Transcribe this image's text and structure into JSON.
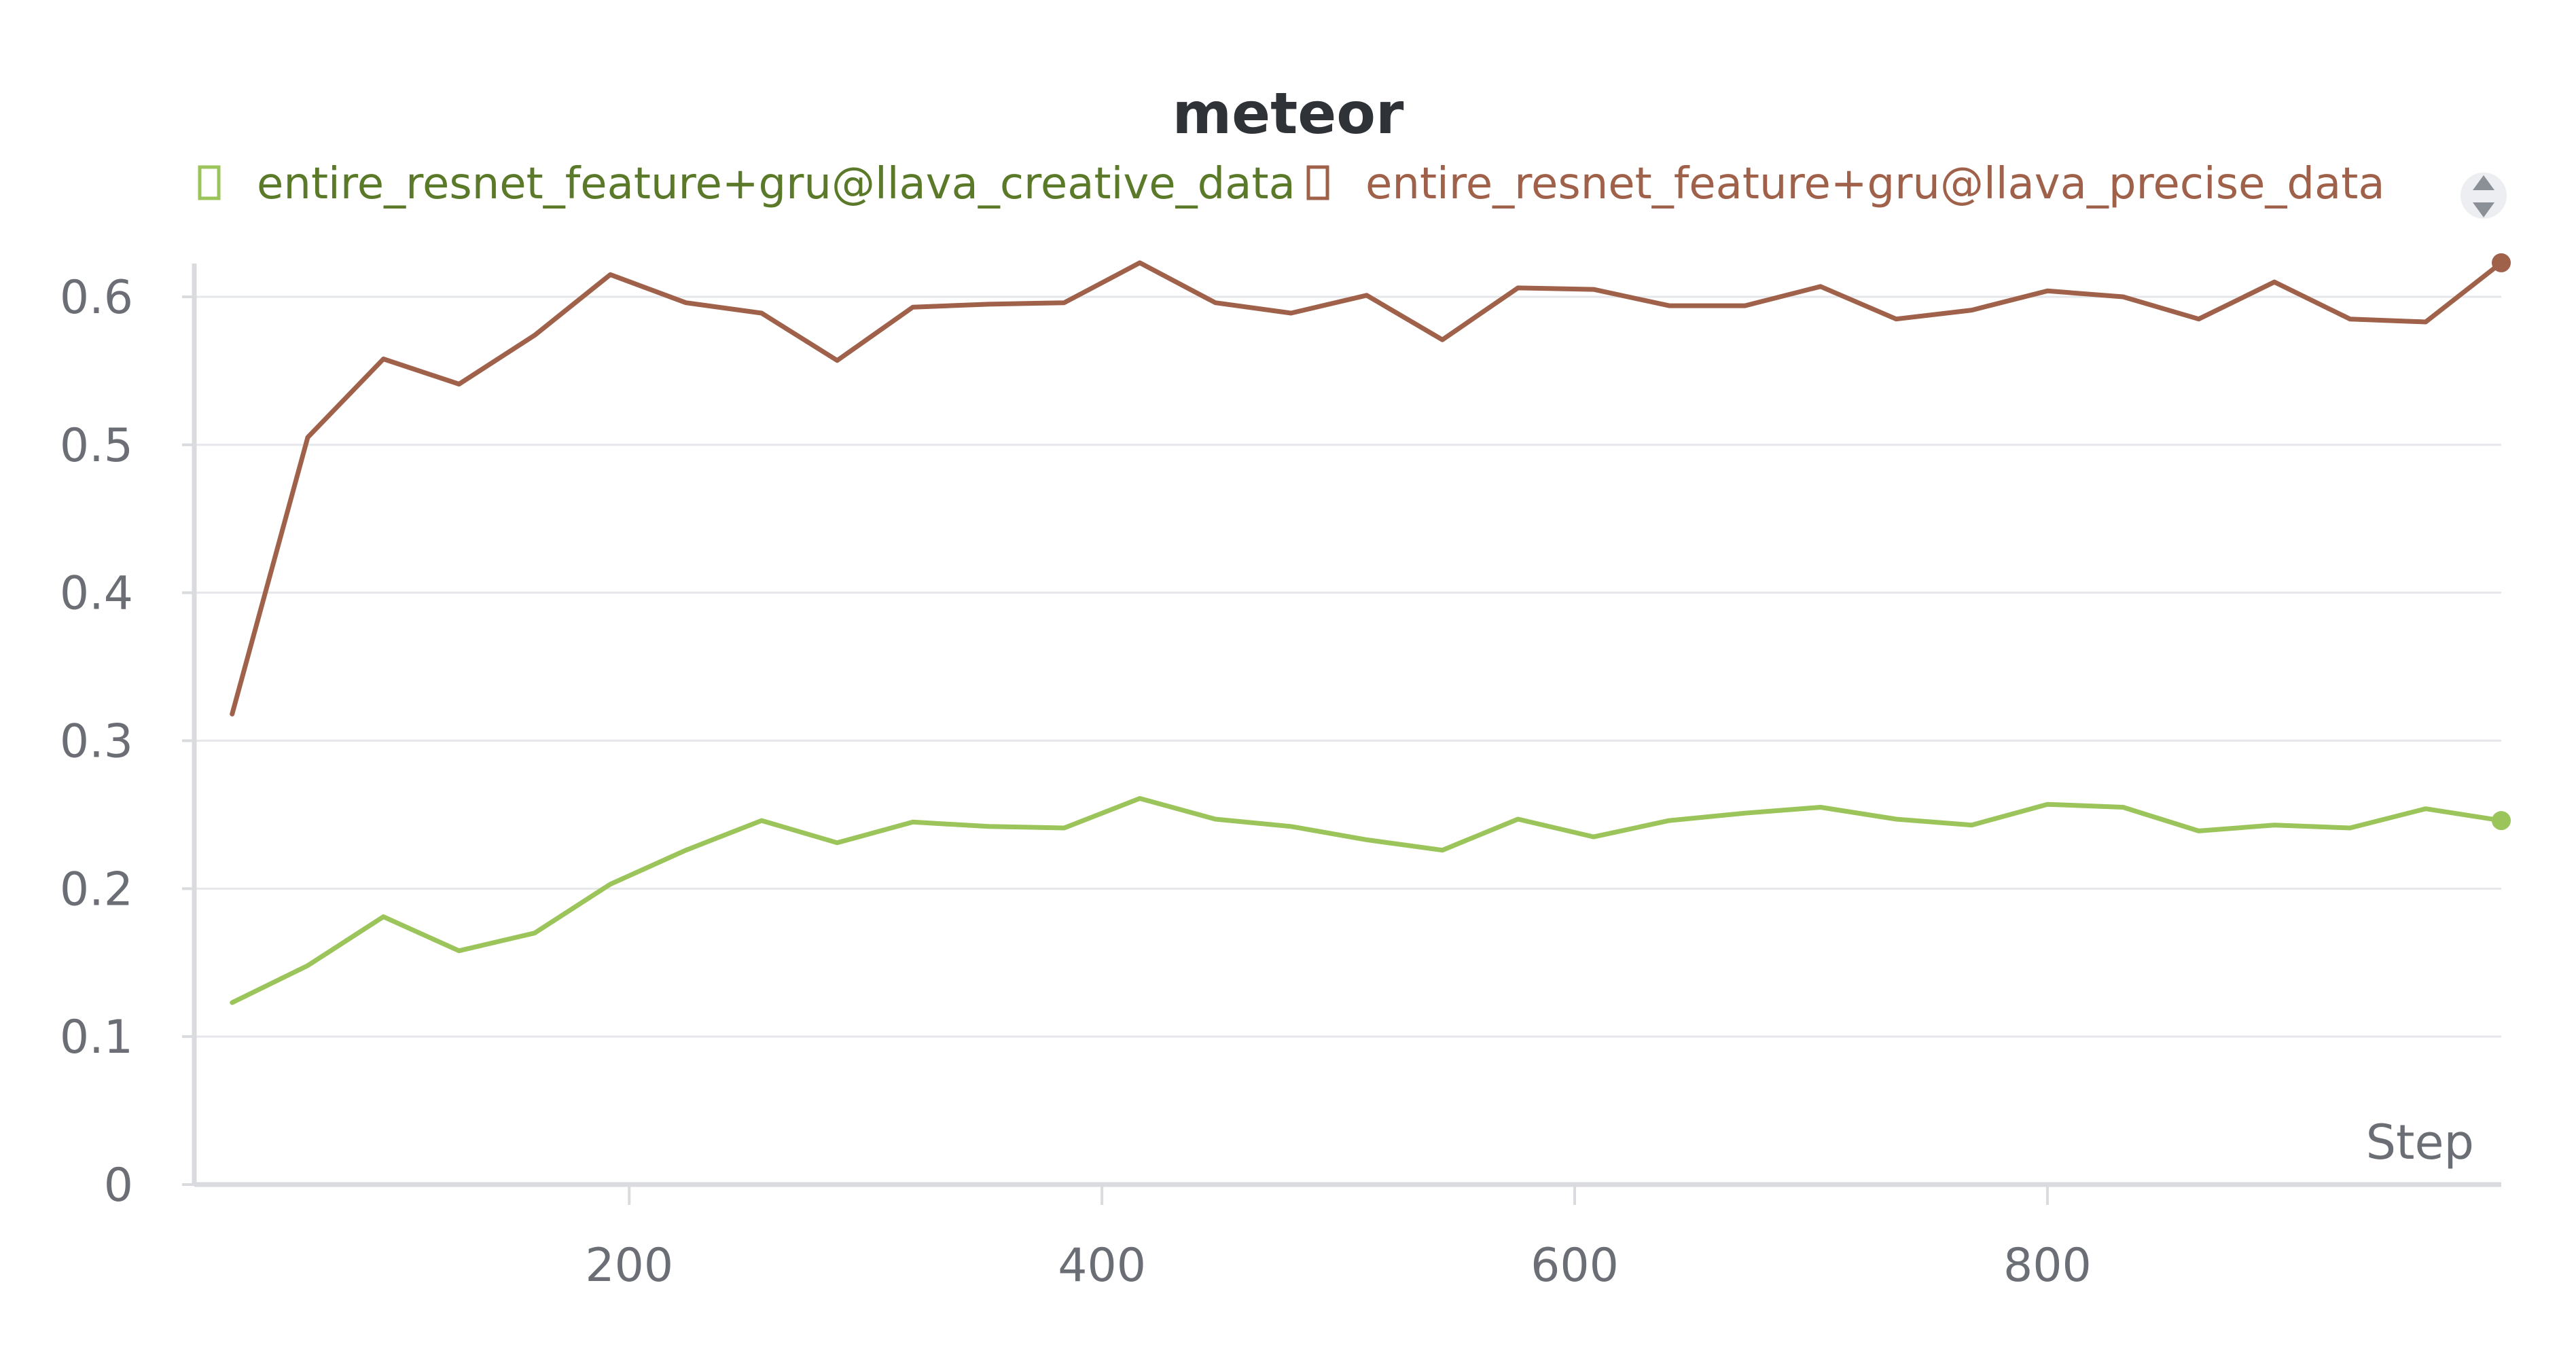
{
  "chart_data": {
    "type": "line",
    "title": "meteor",
    "xlabel": "Step",
    "ylabel": "",
    "xlim": [
      16,
      992
    ],
    "ylim": [
      0,
      0.62
    ],
    "xticks": [
      200,
      400,
      600,
      800
    ],
    "yticks": [
      0,
      0.1,
      0.2,
      0.3,
      0.4,
      0.5,
      0.6
    ],
    "grid": true,
    "legend_position": "top",
    "series": [
      {
        "name": "entire_resnet_feature+gru@llava_creative_data",
        "color": "#9bc45a",
        "legend_text_color": "#5a7a2a",
        "x": [
          32,
          64,
          96,
          128,
          160,
          192,
          224,
          256,
          288,
          320,
          352,
          384,
          416,
          448,
          480,
          512,
          544,
          576,
          608,
          640,
          672,
          704,
          736,
          768,
          800,
          832,
          864,
          896,
          928,
          960,
          992
        ],
        "values": [
          0.123,
          0.148,
          0.181,
          0.158,
          0.17,
          0.203,
          0.226,
          0.246,
          0.231,
          0.245,
          0.242,
          0.241,
          0.261,
          0.247,
          0.242,
          0.233,
          0.226,
          0.247,
          0.235,
          0.246,
          0.251,
          0.255,
          0.247,
          0.243,
          0.257,
          0.255,
          0.239,
          0.243,
          0.241,
          0.254,
          0.246
        ]
      },
      {
        "name": "entire_resnet_feature+gru@llava_precise_data",
        "color": "#a0614a",
        "legend_text_color": "#a0614a",
        "x": [
          32,
          64,
          96,
          128,
          160,
          192,
          224,
          256,
          288,
          320,
          352,
          384,
          416,
          448,
          480,
          512,
          544,
          576,
          608,
          640,
          672,
          704,
          736,
          768,
          800,
          832,
          864,
          896,
          928,
          960,
          992
        ],
        "values": [
          0.318,
          0.505,
          0.558,
          0.541,
          0.574,
          0.615,
          0.596,
          0.589,
          0.557,
          0.593,
          0.595,
          0.596,
          0.623,
          0.596,
          0.589,
          0.601,
          0.571,
          0.606,
          0.605,
          0.594,
          0.594,
          0.607,
          0.585,
          0.591,
          0.604,
          0.6,
          0.585,
          0.61,
          0.585,
          0.583,
          0.623
        ]
      }
    ]
  }
}
